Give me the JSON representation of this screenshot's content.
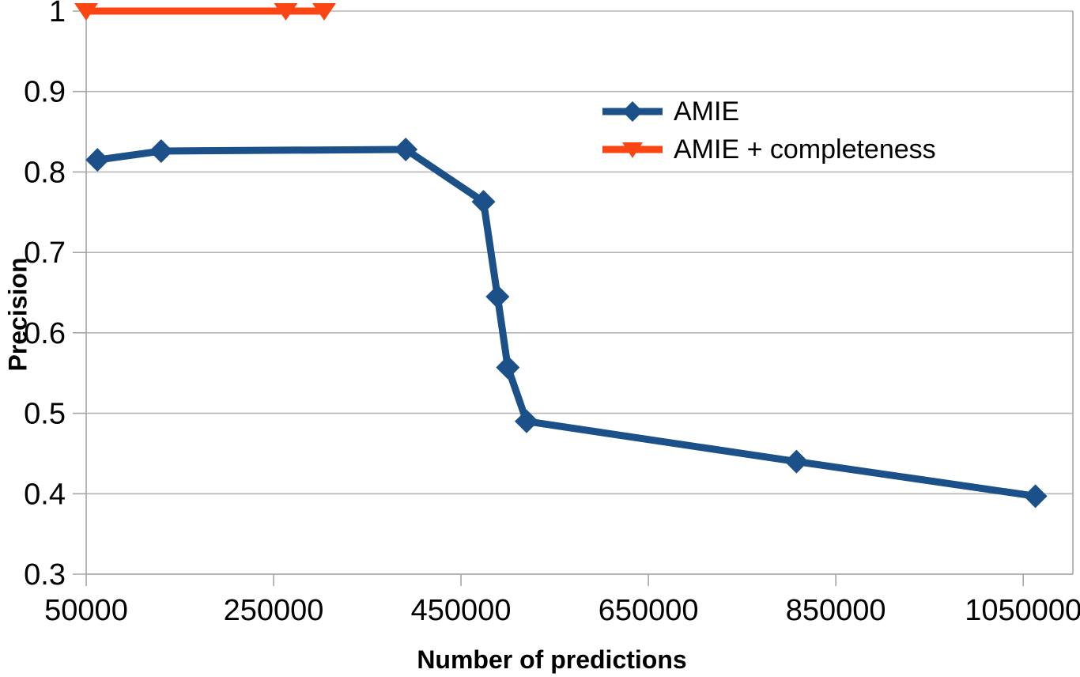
{
  "chart_data": {
    "type": "line",
    "title": "",
    "xlabel": "Number of predictions",
    "ylabel": "Precision",
    "xlim": [
      50000,
      1103000
    ],
    "ylim": [
      0.3,
      1.0
    ],
    "x_ticks": [
      50000,
      250000,
      450000,
      650000,
      850000,
      1050000
    ],
    "x_tick_labels": [
      "50000",
      "250000",
      "450000",
      "650000",
      "850000",
      "1050000"
    ],
    "y_ticks": [
      1,
      0.9,
      0.8,
      0.7,
      0.6,
      0.5,
      0.4,
      0.3
    ],
    "y_tick_labels": [
      "1",
      "0.9",
      "0.8",
      "0.7",
      "0.6",
      "0.5",
      "0.4",
      "0.3"
    ],
    "grid": "horizontal gridlines on, light gray; left axis and right border drawn",
    "legend_position": "inside upper-right, no border",
    "series": [
      {
        "name": "AMIE",
        "color": "#1b5088",
        "marker": "diamond",
        "points": [
          [
            62000,
            0.815
          ],
          [
            130000,
            0.826
          ],
          [
            391000,
            0.828
          ],
          [
            474000,
            0.763
          ],
          [
            489000,
            0.645
          ],
          [
            500000,
            0.557
          ],
          [
            520000,
            0.49
          ],
          [
            808000,
            0.44
          ],
          [
            1063000,
            0.397
          ]
        ]
      },
      {
        "name": "AMIE + completeness",
        "color": "#fb4613",
        "marker": "triangle-down",
        "points": [
          [
            50000,
            1.0
          ],
          [
            263000,
            1.0
          ],
          [
            304000,
            1.0
          ]
        ]
      }
    ]
  },
  "axes": {
    "x_title": "Number of predictions",
    "y_title": "Precision"
  },
  "legend": {
    "items": [
      {
        "label": "AMIE"
      },
      {
        "label": "AMIE + completeness"
      }
    ]
  },
  "colors": {
    "background": "#ffffff",
    "gridline": "#b6b6b6",
    "axis": "#a6a6a6",
    "text": "#000000",
    "series_amie": "#1b5088",
    "series_amie_completeness": "#fb4613"
  }
}
